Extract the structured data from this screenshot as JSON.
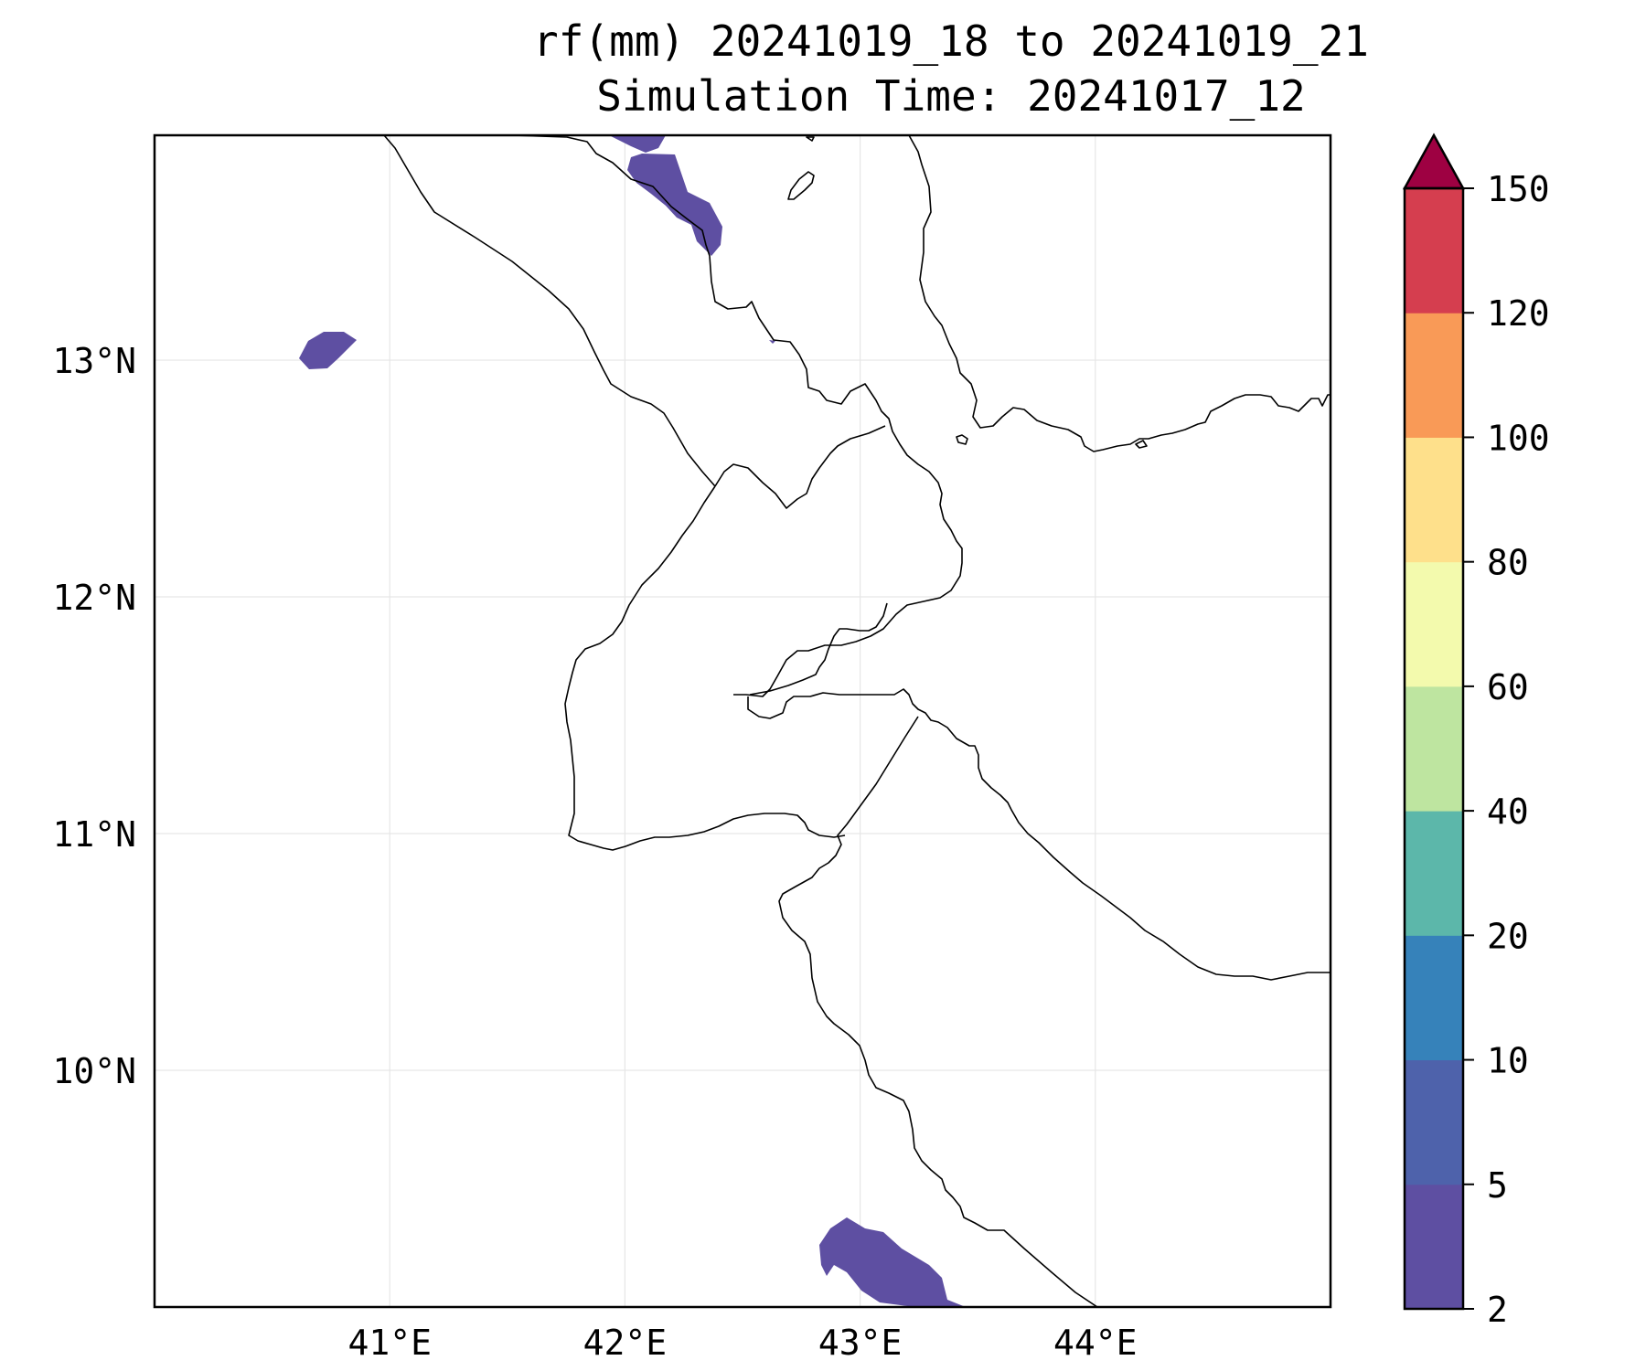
{
  "title": {
    "line1": "rf(mm) 20241019_18 to 20241019_21",
    "line2": "Simulation Time: 20241017_12"
  },
  "map": {
    "lon_range": [
      40.0,
      45.0
    ],
    "lat_range": [
      9.0,
      13.95
    ],
    "grid": true,
    "x_ticks": [
      {
        "value": 41,
        "label": "41°E"
      },
      {
        "value": 42,
        "label": "42°E"
      },
      {
        "value": 43,
        "label": "43°E"
      },
      {
        "value": 44,
        "label": "44°E"
      }
    ],
    "y_ticks": [
      {
        "value": 13,
        "label": "13°N"
      },
      {
        "value": 12,
        "label": "12°N"
      },
      {
        "value": 11,
        "label": "11°N"
      },
      {
        "value": 10,
        "label": "10°N"
      }
    ]
  },
  "colorbar": {
    "extend": "max",
    "extend_color": "#9e0142",
    "levels": [
      {
        "value": "2",
        "color": "#5e4fa2"
      },
      {
        "value": "5",
        "color": "#4e62ab"
      },
      {
        "value": "10",
        "color": "#3682ba"
      },
      {
        "value": "20",
        "color": "#5cb7aa"
      },
      {
        "value": "40",
        "color": "#bee5a0"
      },
      {
        "value": "60",
        "color": "#f3faad"
      },
      {
        "value": "80",
        "color": "#fee08b"
      },
      {
        "value": "100",
        "color": "#f99a57"
      },
      {
        "value": "120",
        "color": "#d53e4f"
      },
      {
        "value": "150",
        "color": null
      }
    ]
  },
  "rainfall_color": "#5e4fa2"
}
